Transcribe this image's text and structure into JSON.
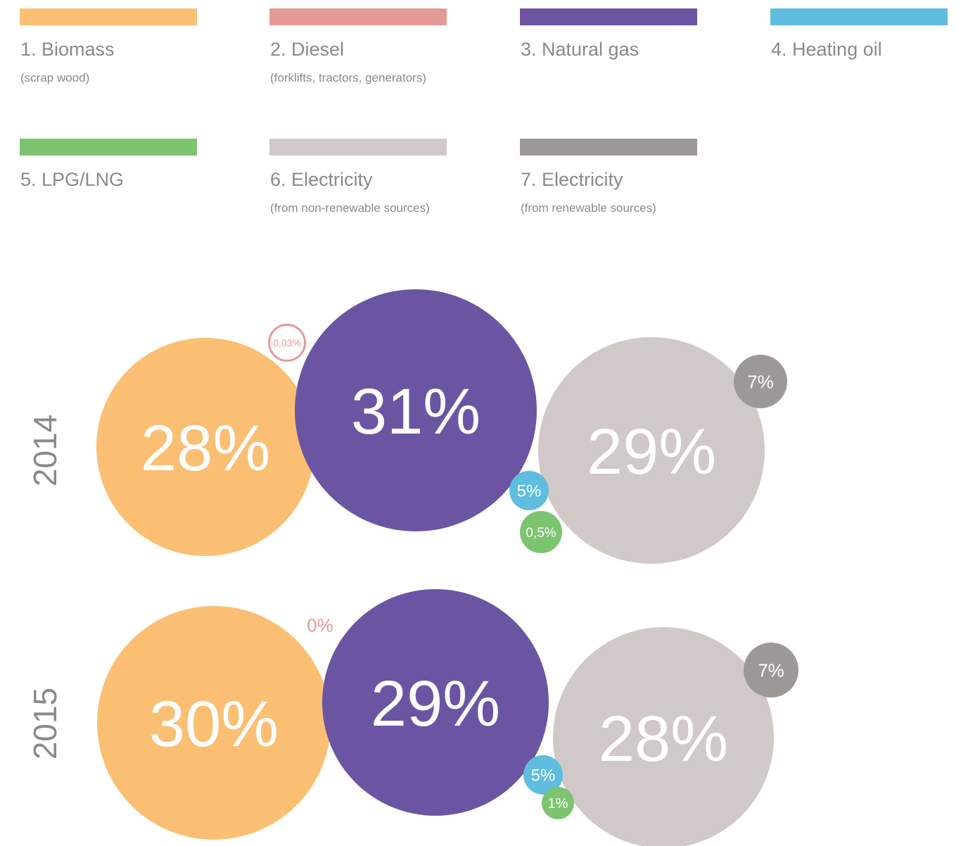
{
  "chart_data": {
    "type": "bubble",
    "categories": [
      "2014",
      "2015"
    ],
    "series": [
      {
        "name": "1. Biomass",
        "description": "(scrap wood)",
        "color": "#fbbf74",
        "values": [
          28,
          30
        ],
        "value_labels": [
          "28%",
          "30%"
        ]
      },
      {
        "name": "2. Diesel",
        "description": "(forklifts, tractors, generators)",
        "color": "#e59a95",
        "values": [
          0.03,
          0
        ],
        "value_labels": [
          "0,03%",
          "0%"
        ]
      },
      {
        "name": "3. Natural gas",
        "color": "#6b55a3",
        "values": [
          31,
          29
        ],
        "value_labels": [
          "31%",
          "29%"
        ]
      },
      {
        "name": "4. Heating oil",
        "color": "#5fbde0",
        "values": [
          5,
          5
        ],
        "value_labels": [
          "5%",
          "5%"
        ]
      },
      {
        "name": "5. LPG/LNG",
        "color": "#7dc470",
        "values": [
          0.5,
          1
        ],
        "value_labels": [
          "0,5%",
          "1%"
        ]
      },
      {
        "name": "6. Electricity",
        "description": "(from non-renewable sources)",
        "color": "#d0c9c7",
        "values": [
          29,
          28
        ],
        "value_labels": [
          "29%",
          "28%"
        ]
      },
      {
        "name": "7. Electricity",
        "description": "(from renewable sources)",
        "color": "#9b9896",
        "values": [
          7,
          7
        ],
        "value_labels": [
          "7%",
          "7%"
        ]
      }
    ]
  }
}
